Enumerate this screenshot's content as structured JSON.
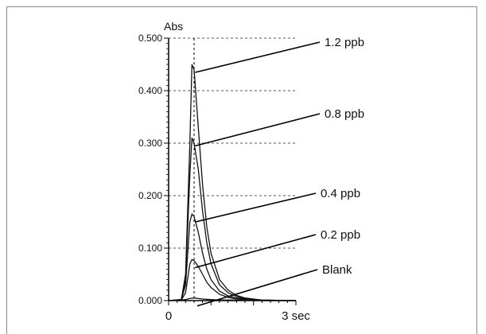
{
  "chart_data": {
    "type": "line",
    "title": "",
    "ylabel": "Abs",
    "xlabel": "",
    "xlim": [
      0,
      3
    ],
    "ylim": [
      0,
      0.5
    ],
    "yticks": [
      "0.000",
      "0.100",
      "0.200",
      "0.300",
      "0.400",
      "0.500"
    ],
    "xticks": [
      {
        "value": 0,
        "label": "0"
      },
      {
        "value": 3,
        "label": "3 sec"
      }
    ],
    "grid": "dashed",
    "peak_marker_x": 0.6,
    "series": [
      {
        "name": "1.2 ppb",
        "x": [
          0,
          0.3,
          0.4,
          0.5,
          0.55,
          0.6,
          0.7,
          0.8,
          0.9,
          1.0,
          1.2,
          1.4,
          1.6,
          1.8,
          2.0,
          2.2,
          3.0
        ],
        "y": [
          0,
          0.002,
          0.05,
          0.3,
          0.45,
          0.44,
          0.33,
          0.22,
          0.14,
          0.09,
          0.04,
          0.02,
          0.01,
          0.005,
          0.003,
          0.001,
          0
        ]
      },
      {
        "name": "0.8 ppb",
        "x": [
          0,
          0.3,
          0.4,
          0.5,
          0.55,
          0.6,
          0.7,
          0.8,
          0.9,
          1.0,
          1.2,
          1.4,
          1.6,
          1.8,
          2.0,
          2.2,
          3.0
        ],
        "y": [
          0,
          0.002,
          0.04,
          0.24,
          0.31,
          0.3,
          0.25,
          0.17,
          0.11,
          0.07,
          0.03,
          0.015,
          0.008,
          0.004,
          0.002,
          0.001,
          0
        ]
      },
      {
        "name": "0.4 ppb",
        "x": [
          0,
          0.3,
          0.4,
          0.5,
          0.55,
          0.6,
          0.7,
          0.8,
          0.9,
          1.0,
          1.2,
          1.4,
          1.6,
          1.8,
          2.0,
          2.2,
          3.0
        ],
        "y": [
          0,
          0.002,
          0.03,
          0.15,
          0.165,
          0.16,
          0.13,
          0.09,
          0.06,
          0.04,
          0.018,
          0.009,
          0.005,
          0.003,
          0.001,
          0,
          0
        ]
      },
      {
        "name": "0.2 ppb",
        "x": [
          0,
          0.3,
          0.4,
          0.5,
          0.55,
          0.6,
          0.7,
          0.8,
          0.9,
          1.0,
          1.2,
          1.4,
          1.6,
          1.8,
          2.0,
          2.2,
          3.0
        ],
        "y": [
          0,
          0.001,
          0.015,
          0.07,
          0.078,
          0.076,
          0.065,
          0.05,
          0.035,
          0.025,
          0.012,
          0.006,
          0.003,
          0.002,
          0.001,
          0,
          0
        ]
      },
      {
        "name": "Blank",
        "x": [
          0,
          0.3,
          0.4,
          0.5,
          0.6,
          0.7,
          0.8,
          1.0,
          1.2,
          1.5,
          2.0,
          3.0
        ],
        "y": [
          0,
          0.001,
          0.002,
          0.004,
          0.005,
          0.004,
          0.003,
          0.002,
          0.001,
          0.001,
          0,
          0
        ]
      }
    ],
    "annotations": [
      {
        "label": "1.2 ppb",
        "series": 0,
        "at_x": 0.55
      },
      {
        "label": "0.8 ppb",
        "series": 1,
        "at_x": 0.55
      },
      {
        "label": "0.4 ppb",
        "series": 2,
        "at_x": 0.55
      },
      {
        "label": "0.2 ppb",
        "series": 3,
        "at_x": 0.55
      },
      {
        "label": "Blank",
        "series": 4,
        "at_x": 0.6
      }
    ]
  }
}
